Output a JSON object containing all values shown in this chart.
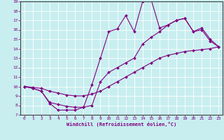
{
  "xlabel": "Windchill (Refroidissement éolien,°C)",
  "background_color": "#c8eef0",
  "line_color": "#800080",
  "xlim": [
    -0.5,
    23.5
  ],
  "ylim": [
    7,
    19
  ],
  "xticks": [
    0,
    1,
    2,
    3,
    4,
    5,
    6,
    7,
    8,
    9,
    10,
    11,
    12,
    13,
    14,
    15,
    16,
    17,
    18,
    19,
    20,
    21,
    22,
    23
  ],
  "yticks": [
    7,
    8,
    9,
    10,
    11,
    12,
    13,
    14,
    15,
    16,
    17,
    18,
    19
  ],
  "line1_x": [
    0,
    1,
    2,
    3,
    4,
    5,
    6,
    7,
    8,
    9,
    10,
    11,
    12,
    13,
    14,
    15,
    16,
    17,
    18,
    19,
    20,
    21,
    22,
    23
  ],
  "line1_y": [
    10,
    9.8,
    9.5,
    8.2,
    7.5,
    7.5,
    7.5,
    7.8,
    10.2,
    13.0,
    15.8,
    16.1,
    17.5,
    15.8,
    19.0,
    19.2,
    16.2,
    16.5,
    17.0,
    17.2,
    15.8,
    16.0,
    14.8,
    14.2
  ],
  "line2_x": [
    0,
    1,
    2,
    3,
    4,
    5,
    6,
    7,
    8,
    9,
    10,
    11,
    12,
    13,
    14,
    15,
    16,
    17,
    18,
    19,
    20,
    21,
    22,
    23
  ],
  "line2_y": [
    10,
    9.8,
    9.5,
    8.3,
    8.1,
    7.9,
    7.8,
    7.8,
    8.0,
    10.5,
    11.5,
    12.0,
    12.5,
    13.0,
    14.5,
    15.2,
    15.8,
    16.5,
    17.0,
    17.2,
    15.8,
    16.2,
    15.0,
    14.2
  ],
  "line3_x": [
    0,
    1,
    2,
    3,
    4,
    5,
    6,
    7,
    8,
    9,
    10,
    11,
    12,
    13,
    14,
    15,
    16,
    17,
    18,
    19,
    20,
    21,
    22,
    23
  ],
  "line3_y": [
    10,
    9.9,
    9.8,
    9.5,
    9.3,
    9.1,
    9.0,
    9.0,
    9.2,
    9.5,
    10.0,
    10.5,
    11.0,
    11.5,
    12.0,
    12.5,
    13.0,
    13.3,
    13.5,
    13.7,
    13.8,
    13.9,
    14.0,
    14.2
  ]
}
